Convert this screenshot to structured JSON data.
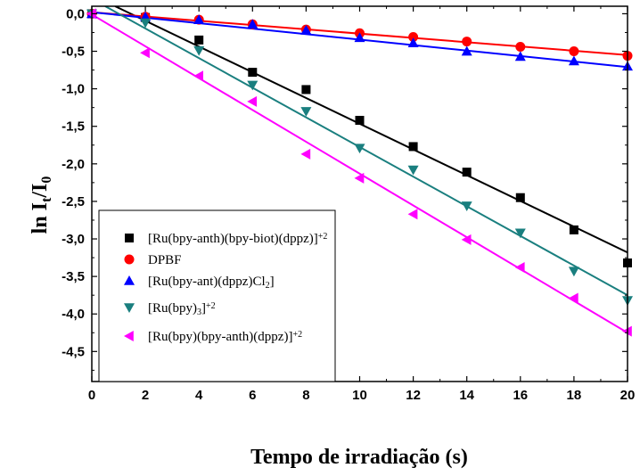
{
  "chart_data": {
    "type": "scatter",
    "xlabel": "Tempo de irradiação (s)",
    "ylabel": {
      "main": "ln I",
      "sub1": "t",
      "mid": "/I",
      "sub2": "0"
    },
    "xlim": [
      0,
      20
    ],
    "ylim": [
      -4.9,
      0.1
    ],
    "x_ticks": [
      "0",
      "2",
      "4",
      "6",
      "8",
      "10",
      "12",
      "14",
      "16",
      "18",
      "20"
    ],
    "y_ticks": [
      "0,0",
      "-0,5",
      "-1,0",
      "-1,5",
      "-2,0",
      "-2,5",
      "-3,0",
      "-3,5",
      "-4,0",
      "-4,5"
    ],
    "grid": false,
    "legend_position": "bottom-left",
    "series": [
      {
        "legend": {
          "text": "[Ru(bpy-anth)(bpy-biot)(dppz)]",
          "sup": "+2"
        },
        "marker": "square",
        "color": "#000000",
        "x": [
          0,
          2,
          4,
          6,
          8,
          10,
          12,
          14,
          16,
          18,
          20
        ],
        "y": [
          0.0,
          -0.05,
          -0.35,
          -0.78,
          -1.01,
          -1.42,
          -1.77,
          -2.11,
          -2.45,
          -2.88,
          -3.32
        ],
        "fit": {
          "x0": 0.87,
          "y0": 0.1,
          "x1": 20,
          "y1": -3.18
        }
      },
      {
        "legend": {
          "text": "DPBF"
        },
        "marker": "circle",
        "color": "#ff0000",
        "x": [
          0,
          2,
          4,
          6,
          8,
          10,
          12,
          14,
          16,
          18,
          20
        ],
        "y": [
          0.0,
          -0.04,
          -0.08,
          -0.14,
          -0.21,
          -0.26,
          -0.31,
          -0.37,
          -0.44,
          -0.5,
          -0.56
        ],
        "fit": {
          "x0": 0,
          "y0": 0.02,
          "x1": 20,
          "y1": -0.55
        }
      },
      {
        "legend": {
          "text": "[Ru(bpy-ant)(dppz)Cl",
          "sub": "2",
          "tail": "]"
        },
        "marker": "triangle-up",
        "color": "#0000ff",
        "x": [
          0,
          2,
          4,
          6,
          8,
          10,
          12,
          14,
          16,
          18,
          20
        ],
        "y": [
          0.0,
          -0.04,
          -0.08,
          -0.14,
          -0.22,
          -0.32,
          -0.39,
          -0.5,
          -0.57,
          -0.63,
          -0.7
        ],
        "fit": {
          "x0": 0,
          "y0": 0.02,
          "x1": 20,
          "y1": -0.71
        }
      },
      {
        "legend": {
          "text": "[Ru(bpy)",
          "sub": "3",
          "tail": "]",
          "sup": "+2"
        },
        "marker": "triangle-down",
        "color": "#1a7f7f",
        "x": [
          0,
          2,
          4,
          6,
          8,
          10,
          12,
          14,
          16,
          18,
          20
        ],
        "y": [
          0.0,
          -0.12,
          -0.49,
          -0.95,
          -1.3,
          -1.79,
          -2.08,
          -2.56,
          -2.92,
          -3.43,
          -3.82
        ],
        "fit": {
          "x0": 0.5,
          "y0": 0.1,
          "x1": 20,
          "y1": -3.75
        }
      },
      {
        "legend": {
          "text": "[Ru(bpy)(bpy-anth)(dppz)]",
          "sup": "+2"
        },
        "marker": "triangle-left",
        "color": "#ff00ff",
        "x": [
          0,
          2,
          4,
          6,
          8,
          10,
          12,
          14,
          16,
          18,
          20
        ],
        "y": [
          0.0,
          -0.52,
          -0.83,
          -1.17,
          -1.87,
          -2.19,
          -2.67,
          -3.01,
          -3.38,
          -3.79,
          -4.23
        ],
        "fit": {
          "x0": 0,
          "y0": -0.01,
          "x1": 20,
          "y1": -4.25
        }
      }
    ]
  }
}
